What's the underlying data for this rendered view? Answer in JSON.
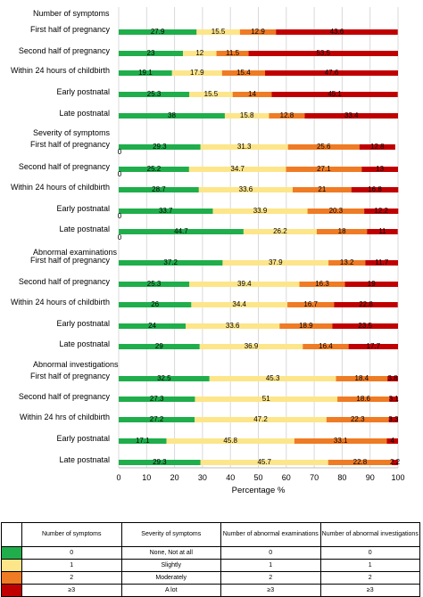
{
  "chart_data": {
    "type": "bar",
    "stacked": true,
    "orientation": "horizontal",
    "xlabel": "Percentage %",
    "xlim": [
      0,
      100
    ],
    "xticks": [
      0,
      10,
      20,
      30,
      40,
      50,
      60,
      70,
      80,
      90,
      100
    ],
    "grid": true,
    "colors": [
      "#1fae4b",
      "#fde58a",
      "#ef7b24",
      "#c00000"
    ],
    "groups": [
      {
        "title": "Number of symptoms",
        "rows": [
          {
            "label": "First half of pregnancy",
            "values": [
              27.9,
              15.5,
              12.9,
              43.6
            ],
            "labels": [
              "27.9",
              "15.5",
              "12.9",
              "43.6"
            ]
          },
          {
            "label": "Second half of pregnancy",
            "values": [
              23,
              12,
              11.5,
              53.5
            ],
            "labels": [
              "23",
              "12",
              "11.5",
              "53.5"
            ]
          },
          {
            "label": "Within 24 hours of childbirth",
            "values": [
              19.1,
              17.9,
              15.4,
              47.6
            ],
            "labels": [
              "19.1",
              "17.9",
              "15.4",
              "47.6"
            ]
          },
          {
            "label": "Early postnatal",
            "values": [
              25.3,
              15.5,
              14,
              45.1
            ],
            "labels": [
              "25.3",
              "15.5",
              "14",
              "45.1"
            ]
          },
          {
            "label": "Late postnatal",
            "values": [
              38,
              15.8,
              12.8,
              33.4
            ],
            "labels": [
              "38",
              "15.8",
              "12.8",
              "33.4"
            ]
          }
        ]
      },
      {
        "title": "Severity of symptoms",
        "rows": [
          {
            "label": "First half of pregnancy",
            "values": [
              29.3,
              31.3,
              25.6,
              12.8
            ],
            "labels": [
              "29.3",
              "31.3",
              "25.6",
              "12.8"
            ],
            "zero": "0"
          },
          {
            "label": "Second half of pregnancy",
            "values": [
              25.2,
              34.7,
              27.1,
              13
            ],
            "labels": [
              "25.2",
              "34.7",
              "27.1",
              "13"
            ],
            "zero": "0"
          },
          {
            "label": "Within 24 hours of childbirth",
            "values": [
              28.7,
              33.6,
              21,
              16.8
            ],
            "labels": [
              "28.7",
              "33.6",
              "21",
              "16.8"
            ]
          },
          {
            "label": "Early postnatal",
            "values": [
              33.7,
              33.9,
              20.3,
              12.2
            ],
            "labels": [
              "33.7",
              "33.9",
              "20.3",
              "12.2"
            ],
            "zero": "0"
          },
          {
            "label": "Late postnatal",
            "values": [
              44.7,
              26.2,
              18,
              11
            ],
            "labels": [
              "44.7",
              "26.2",
              "18",
              "11"
            ],
            "zero": "0"
          }
        ]
      },
      {
        "title": "Abnormal examinations",
        "rows": [
          {
            "label": "First half of pregnancy",
            "values": [
              37.2,
              37.9,
              13.2,
              11.7
            ],
            "labels": [
              "37.2",
              "37.9",
              "13.2",
              "11.7"
            ]
          },
          {
            "label": "Second half of pregnancy",
            "values": [
              25.3,
              39.4,
              16.3,
              19
            ],
            "labels": [
              "25.3",
              "39.4",
              "16.3",
              "19"
            ]
          },
          {
            "label": "Within 24 hours of childbirth",
            "values": [
              26,
              34.4,
              16.7,
              22.8
            ],
            "labels": [
              "26",
              "34.4",
              "16.7",
              "22.8"
            ]
          },
          {
            "label": "Early postnatal",
            "values": [
              24,
              33.6,
              18.9,
              23.5
            ],
            "labels": [
              "24",
              "33.6",
              "18.9",
              "23.5"
            ]
          },
          {
            "label": "Late postnatal",
            "values": [
              29,
              36.9,
              16.4,
              17.7
            ],
            "labels": [
              "29",
              "36.9",
              "16.4",
              "17.7"
            ]
          }
        ]
      },
      {
        "title": "Abnormal investigations",
        "rows": [
          {
            "label": "First half of pregnancy",
            "values": [
              32.5,
              45.3,
              18.4,
              3.8
            ],
            "labels": [
              "32.5",
              "45.3",
              "18.4",
              "3.8"
            ]
          },
          {
            "label": "Second half of pregnancy",
            "values": [
              27.3,
              51,
              18.6,
              3.1
            ],
            "labels": [
              "27.3",
              "51",
              "18.6",
              "3.1"
            ]
          },
          {
            "label": "Within 24 hrs of childbirth",
            "values": [
              27.2,
              47.2,
              22.3,
              3.3
            ],
            "labels": [
              "27.2",
              "47.2",
              "22.3",
              "3.3"
            ]
          },
          {
            "label": "Early postnatal",
            "values": [
              17.1,
              45.8,
              33.1,
              4
            ],
            "labels": [
              "17.1",
              "45.8",
              "33.1",
              "4"
            ]
          },
          {
            "label": "Late postnatal",
            "values": [
              29.3,
              45.7,
              22.8,
              2.2
            ],
            "labels": [
              "29.3",
              "45.7",
              "22.8",
              "2.2"
            ]
          }
        ]
      }
    ]
  },
  "legend_table": {
    "headers": [
      "Number of symptoms",
      "Severity of symptoms",
      "Number of abnormal examinations",
      "Number of abnormal investigations"
    ],
    "rows": [
      {
        "color": "#1fae4b",
        "cells": [
          "0",
          "None, Not at all",
          "0",
          "0"
        ]
      },
      {
        "color": "#fde58a",
        "cells": [
          "1",
          "Slightly",
          "1",
          "1"
        ]
      },
      {
        "color": "#ef7b24",
        "cells": [
          "2",
          "Moderately",
          "2",
          "2"
        ]
      },
      {
        "color": "#c00000",
        "cells": [
          "≥3",
          "A lot",
          "≥3",
          "≥3"
        ]
      }
    ]
  }
}
